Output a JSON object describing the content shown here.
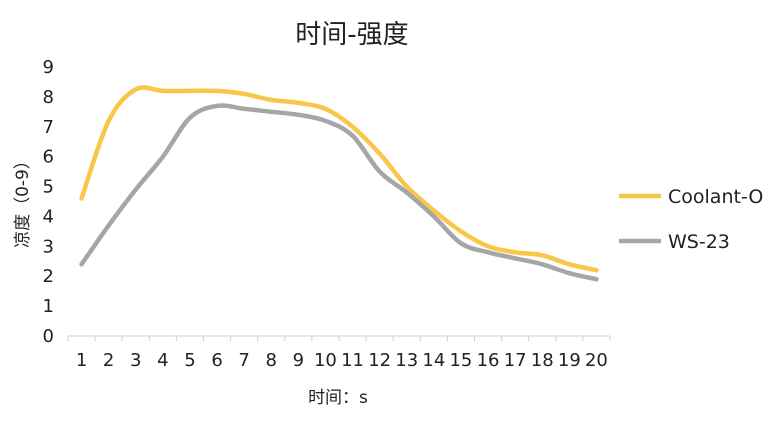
{
  "chart_data": {
    "type": "line",
    "title": "时间-强度",
    "xlabel": "时间：s",
    "ylabel": "凉度（0-9）",
    "ylim": [
      0,
      9
    ],
    "yticks": [
      0,
      1,
      2,
      3,
      4,
      5,
      6,
      7,
      8,
      9
    ],
    "grid": false,
    "legend_position": "right",
    "categories": [
      "1",
      "2",
      "3",
      "4",
      "5",
      "6",
      "7",
      "8",
      "9",
      "10",
      "11",
      "12",
      "13",
      "14",
      "15",
      "16",
      "17",
      "18",
      "19",
      "20"
    ],
    "series": [
      {
        "name": "Coolant-O",
        "color": "#F8C74A",
        "values": [
          4.6,
          7.2,
          8.25,
          8.2,
          8.2,
          8.2,
          8.1,
          7.9,
          7.8,
          7.6,
          7.0,
          6.1,
          5.0,
          4.2,
          3.5,
          3.0,
          2.8,
          2.7,
          2.4,
          2.2
        ]
      },
      {
        "name": "WS-23",
        "color": "#A6A6A6",
        "values": [
          2.4,
          3.7,
          4.9,
          6.0,
          7.3,
          7.7,
          7.6,
          7.5,
          7.4,
          7.2,
          6.7,
          5.5,
          4.8,
          4.0,
          3.1,
          2.8,
          2.6,
          2.4,
          2.1,
          1.9
        ]
      }
    ]
  }
}
